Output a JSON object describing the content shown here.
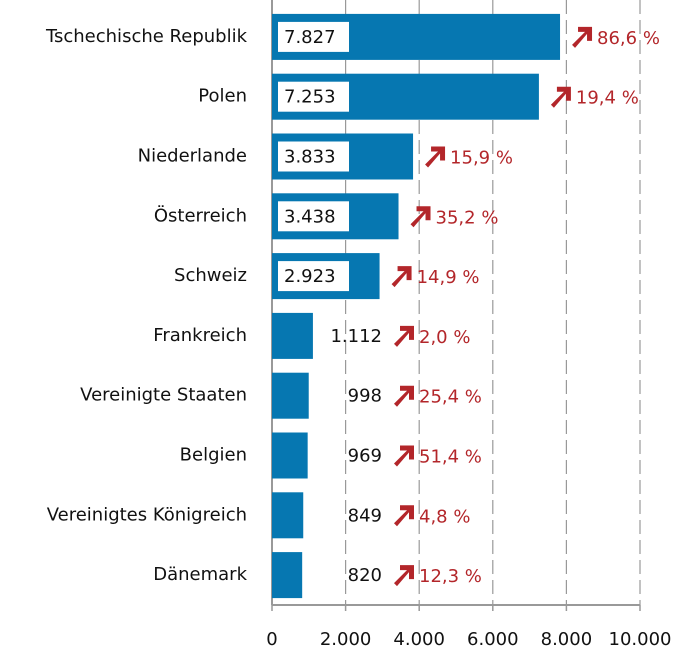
{
  "chart_data": {
    "type": "hbar",
    "categories": [
      "Tschechische Republik",
      "Polen",
      "Niederlande",
      "Österreich",
      "Schweiz",
      "Frankreich",
      "Vereinigte Staaten",
      "Belgien",
      "Vereinigtes Königreich",
      "Dänemark"
    ],
    "values": [
      7827,
      7253,
      3833,
      3438,
      2923,
      1112,
      998,
      969,
      849,
      820
    ],
    "value_labels": [
      "7.827",
      "7.253",
      "3.833",
      "3.438",
      "2.923",
      "1.112",
      "998",
      "969",
      "849",
      "820"
    ],
    "annotations": [
      "86,6 %",
      "19,4 %",
      "15,9 %",
      "35,2 %",
      "14,9 %",
      "2,0 %",
      "25,4 %",
      "51,4 %",
      "4,8 %",
      "12,3 %"
    ],
    "color": "#0677b1",
    "annotation_color": "#b3262a",
    "xlim": [
      0,
      10000
    ],
    "xticks": [
      0,
      {
        "value": 2000,
        "label": "2.000"
      },
      {
        "value": 4000,
        "label": "4.000"
      },
      {
        "value": 6000,
        "label": "6.000"
      },
      {
        "value": 8000,
        "label": "8.000"
      },
      {
        "value": 10000,
        "label": "10.000"
      }
    ],
    "grid": true
  }
}
